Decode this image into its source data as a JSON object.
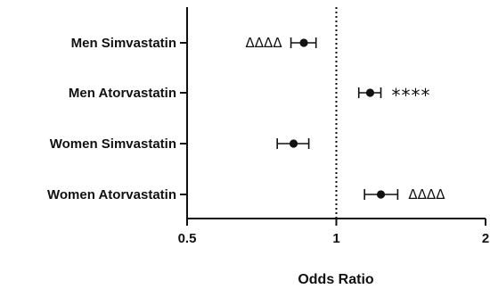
{
  "chart_data": {
    "type": "scatter",
    "xlabel": "Odds Ratio",
    "x_scale": "log",
    "xlim": [
      0.5,
      2
    ],
    "x_ticks": [
      0.5,
      1,
      2
    ],
    "x_tick_labels": [
      "0.5",
      "1",
      "2"
    ],
    "reference_line": 1,
    "categories": [
      "Men Simvastatin",
      "Men Atorvastatin",
      "Women Simvastatin",
      "Women Atorvastatin"
    ],
    "points": [
      {
        "label": "Men Simvastatin",
        "or": 0.86,
        "ci": [
          0.81,
          0.91
        ],
        "annotation": "ΔΔΔΔ",
        "annotation_side": "left"
      },
      {
        "label": "Men Atorvastatin",
        "or": 1.17,
        "ci": [
          1.11,
          1.23
        ],
        "annotation": "****",
        "annotation_side": "right"
      },
      {
        "label": "Women Simvastatin",
        "or": 0.82,
        "ci": [
          0.76,
          0.88
        ],
        "annotation": "",
        "annotation_side": "right"
      },
      {
        "label": "Women Atorvastatin",
        "or": 1.23,
        "ci": [
          1.14,
          1.33
        ],
        "annotation": "ΔΔΔΔ",
        "annotation_side": "right"
      }
    ],
    "grid": false,
    "colors": {
      "marker": "#111111",
      "axis": "#111111"
    }
  }
}
